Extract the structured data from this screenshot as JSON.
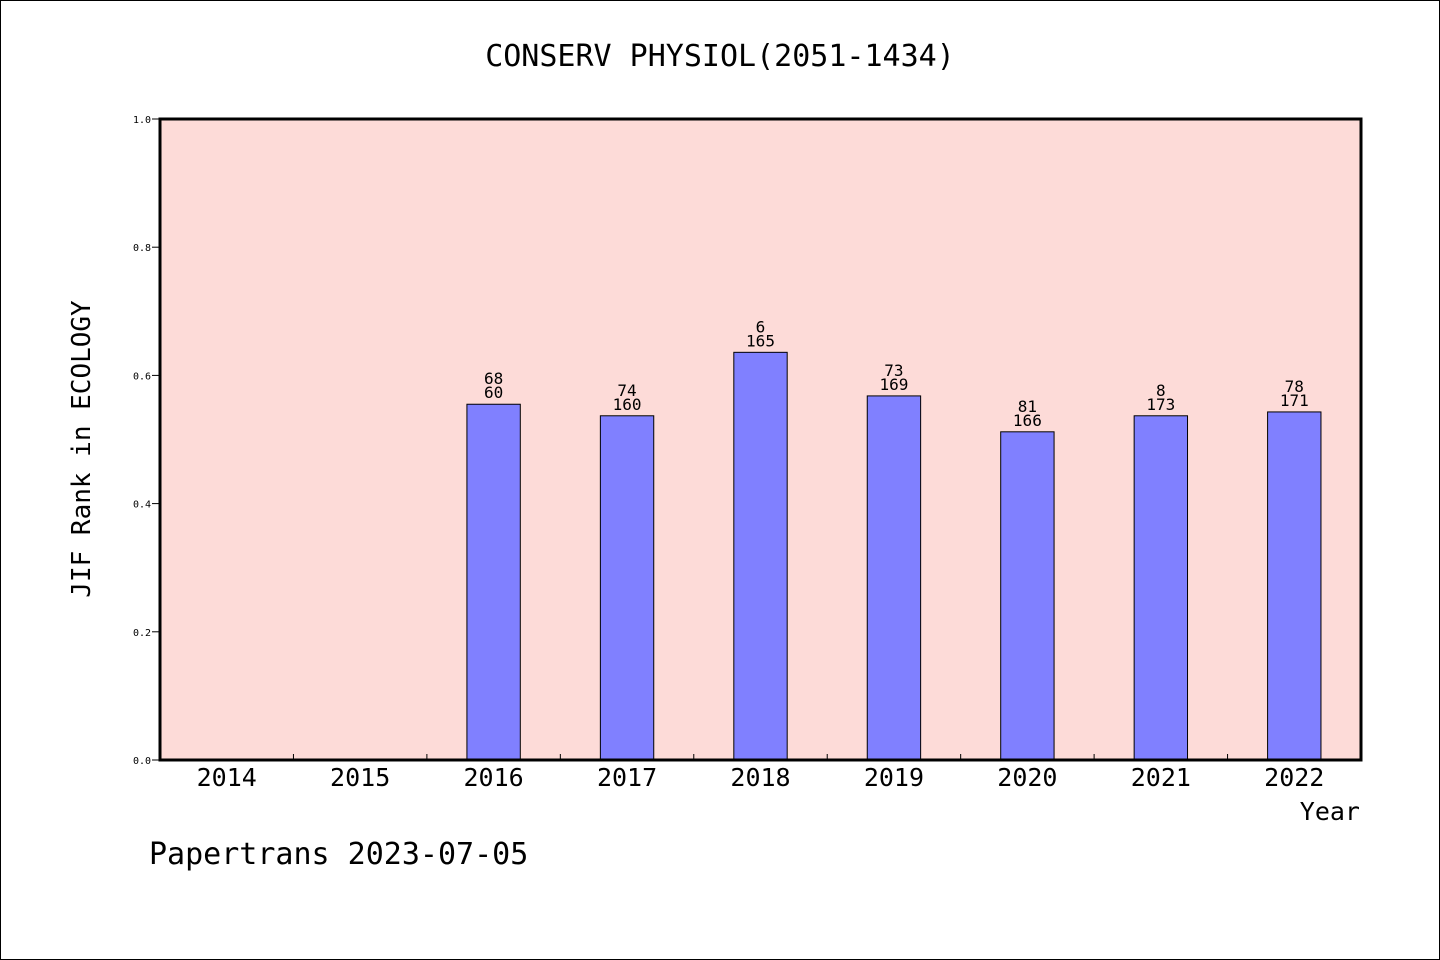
{
  "chart_data": {
    "type": "bar",
    "title": "CONSERV PHYSIOL(2051-1434)",
    "xlabel": "Year",
    "ylabel": "JIF Rank in ECOLOGY",
    "categories": [
      "2014",
      "2015",
      "2016",
      "2017",
      "2018",
      "2019",
      "2020",
      "2021",
      "2022"
    ],
    "values": [
      null,
      null,
      0.555,
      0.537,
      0.636,
      0.568,
      0.512,
      0.537,
      0.543
    ],
    "label_top": [
      "",
      "",
      "68",
      "74",
      "6",
      "73",
      "81",
      "8",
      "78"
    ],
    "label_bottom": [
      "",
      "",
      "60",
      "160",
      "165",
      "169",
      "166",
      "173",
      "171"
    ],
    "yticks": [
      "0.0",
      "0.2",
      "0.4",
      "0.6",
      "0.8",
      "1.0"
    ],
    "ylim": [
      0,
      1
    ],
    "grid": false,
    "colors": {
      "plot_background": "#fddbd8",
      "bar_fill": "#8080ff",
      "bar_stroke": "#000000"
    }
  },
  "footer": "Papertrans 2023-07-05"
}
